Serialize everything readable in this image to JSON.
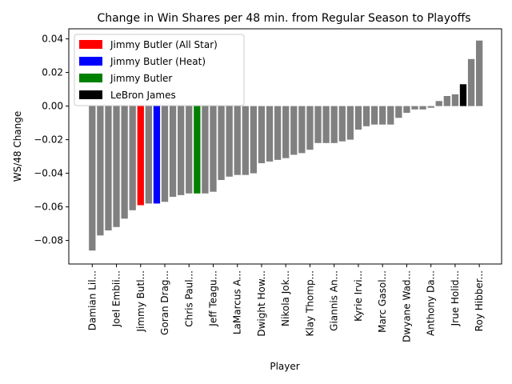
{
  "chart_data": {
    "type": "bar",
    "title": "Change in Win Shares per 48 min. from Regular Season to Playoffs",
    "xlabel": "Player",
    "ylabel": "WS/48 Change",
    "ylim": [
      -0.094,
      0.046
    ],
    "yticks": [
      -0.08,
      -0.06,
      -0.04,
      -0.02,
      0.0,
      0.02,
      0.04
    ],
    "ytick_labels": [
      "−0.08",
      "−0.06",
      "−0.04",
      "−0.02",
      "0.00",
      "0.02",
      "0.04"
    ],
    "default_color": "#808080",
    "colors": {
      "all_star": "#ff0000",
      "heat": "#0000ff",
      "butler": "#008000",
      "lebron": "#000000"
    },
    "values": [
      -0.086,
      -0.077,
      -0.074,
      -0.072,
      -0.067,
      -0.062,
      -0.059,
      -0.058,
      -0.058,
      -0.057,
      -0.054,
      -0.053,
      -0.052,
      -0.052,
      -0.052,
      -0.051,
      -0.044,
      -0.042,
      -0.041,
      -0.041,
      -0.04,
      -0.034,
      -0.033,
      -0.032,
      -0.031,
      -0.029,
      -0.028,
      -0.026,
      -0.022,
      -0.022,
      -0.022,
      -0.021,
      -0.02,
      -0.014,
      -0.012,
      -0.011,
      -0.011,
      -0.011,
      -0.007,
      -0.004,
      -0.002,
      -0.002,
      -0.001,
      0.003,
      0.006,
      0.007,
      0.013,
      0.028,
      0.039
    ],
    "bar_colors": {
      "6": "all_star",
      "8": "heat",
      "13": "butler",
      "46": "lebron"
    },
    "tick_labels": [
      {
        "index": 0,
        "label": "Damian Lil..."
      },
      {
        "index": 3,
        "label": "Joel Embii..."
      },
      {
        "index": 6,
        "label": "Jimmy Butl..."
      },
      {
        "index": 9,
        "label": "Goran Drag..."
      },
      {
        "index": 12,
        "label": "Chris Paul..."
      },
      {
        "index": 15,
        "label": "Jeff Teagu..."
      },
      {
        "index": 18,
        "label": "LaMarcus A..."
      },
      {
        "index": 21,
        "label": "Dwight How..."
      },
      {
        "index": 24,
        "label": "Nikola Jok..."
      },
      {
        "index": 27,
        "label": "Klay Thomp..."
      },
      {
        "index": 30,
        "label": "Giannis An..."
      },
      {
        "index": 33,
        "label": "Kyrie Irvi..."
      },
      {
        "index": 36,
        "label": "Marc Gasol..."
      },
      {
        "index": 39,
        "label": "Dwyane Wad..."
      },
      {
        "index": 42,
        "label": "Anthony Da..."
      },
      {
        "index": 45,
        "label": "Jrue Holid..."
      },
      {
        "index": 48,
        "label": "Roy Hibber..."
      }
    ],
    "legend": {
      "placement": "top-left",
      "entries": [
        {
          "label": "Jimmy Butler (All Star)",
          "color": "#ff0000"
        },
        {
          "label": "Jimmy Butler (Heat)",
          "color": "#0000ff"
        },
        {
          "label": "Jimmy Butler",
          "color": "#008000"
        },
        {
          "label": "LeBron James",
          "color": "#000000"
        }
      ]
    },
    "grid": false
  }
}
